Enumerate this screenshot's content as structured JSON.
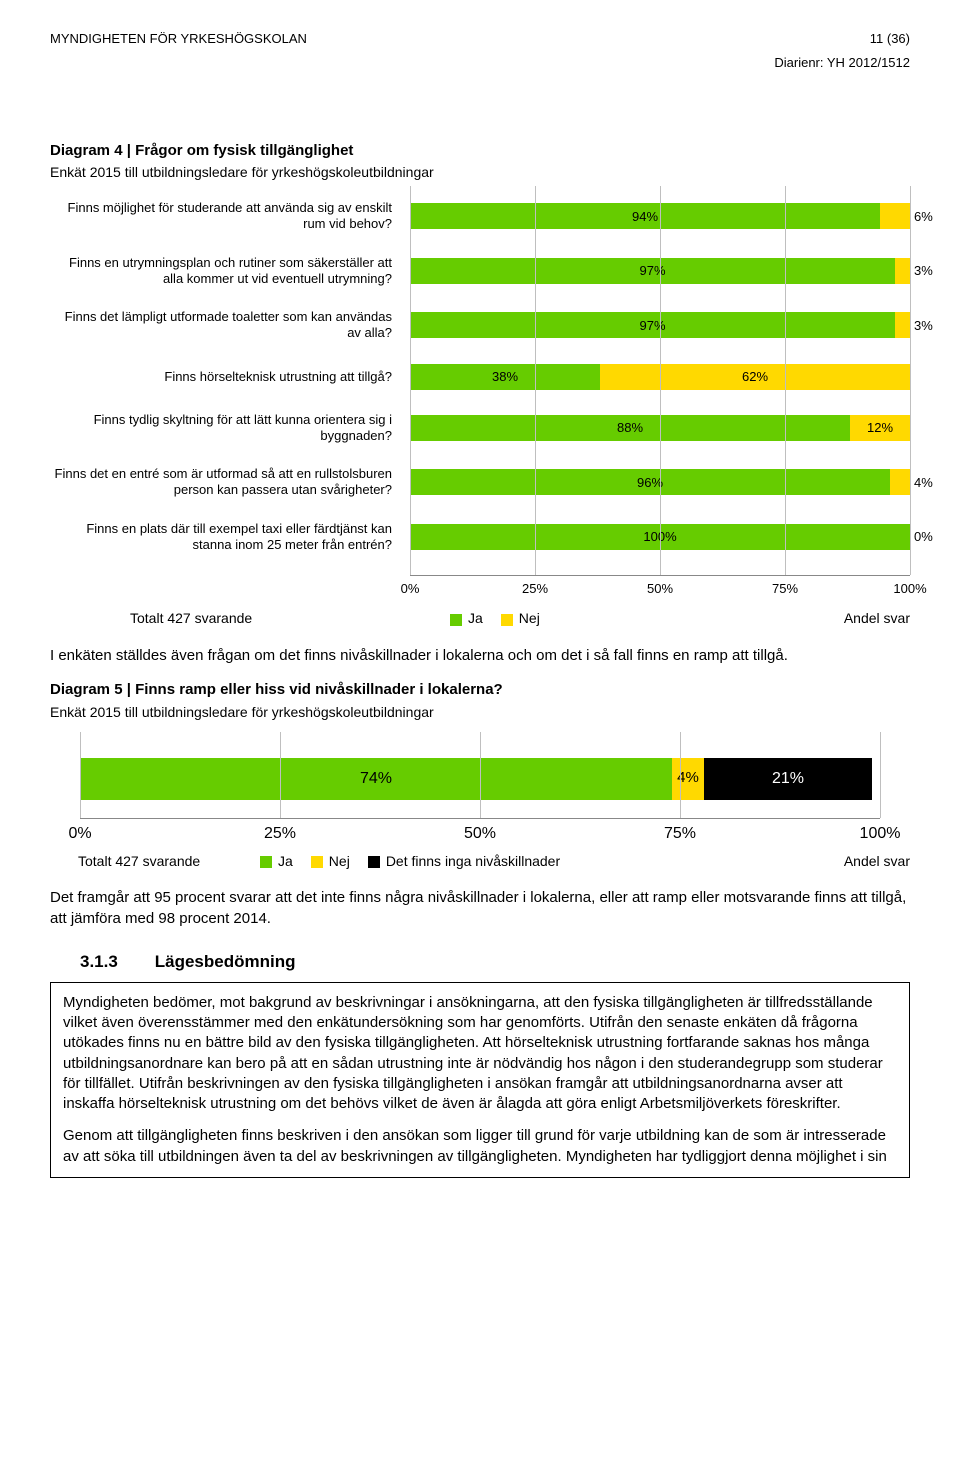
{
  "header": {
    "agency": "MYNDIGHETEN FÖR YRKESHÖGSKOLAN",
    "page_number": "11 (36)",
    "diarienr": "Diarienr: YH 2012/1512"
  },
  "diagram4": {
    "title": "Diagram 4 | Frågor om fysisk tillgänglighet",
    "subtitle": "Enkät 2015 till utbildningsledare för yrkeshögskoleutbildningar",
    "colors": {
      "ja": "#66cc00",
      "nej": "#ffd900",
      "grid": "#bfbfbf",
      "text": "#000000"
    },
    "axis": {
      "ticks": [
        "0%",
        "25%",
        "50%",
        "75%",
        "100%"
      ],
      "positions": [
        0,
        25,
        50,
        75,
        100
      ]
    },
    "rows": [
      {
        "label": "Finns möjlighet för studerande att använda sig av enskilt rum vid behov?",
        "ja": 94,
        "nej": 6,
        "ja_label": "94%",
        "nej_label": "6%"
      },
      {
        "label": "Finns en utrymningsplan och rutiner som säkerställer att alla kommer ut vid eventuell utrymning?",
        "ja": 97,
        "nej": 3,
        "ja_label": "97%",
        "nej_label": "3%"
      },
      {
        "label": "Finns det lämpligt utformade toaletter som kan användas av alla?",
        "ja": 97,
        "nej": 3,
        "ja_label": "97%",
        "nej_label": "3%"
      },
      {
        "label": "Finns hörselteknisk utrustning att tillgå?",
        "ja": 38,
        "nej": 62,
        "ja_label": "38%",
        "nej_label": "62%"
      },
      {
        "label": "Finns tydlig skyltning för att lätt kunna orientera sig i byggnaden?",
        "ja": 88,
        "nej": 12,
        "ja_label": "88%",
        "nej_label": "12%"
      },
      {
        "label": "Finns det en entré som är utformad så att en rullstolsburen person kan passera utan svårigheter?",
        "ja": 96,
        "nej": 4,
        "ja_label": "96%",
        "nej_label": "4%"
      },
      {
        "label": "Finns en plats där till exempel taxi eller färdtjänst kan stanna inom 25 meter från entrén?",
        "ja": 100,
        "nej": 0,
        "ja_label": "100%",
        "nej_label": "0%"
      }
    ],
    "legend": {
      "total": "Totalt 427 svarande",
      "ja": "Ja",
      "nej": "Nej",
      "andel": "Andel svar"
    }
  },
  "paragraph1": "I enkäten ställdes även frågan om det finns nivåskillnader i lokalerna och om det i så fall finns en ramp att tillgå.",
  "diagram5": {
    "title": "Diagram 5 | Finns ramp eller hiss vid nivåskillnader i lokalerna?",
    "subtitle": "Enkät 2015 till utbildningsledare för yrkeshögskoleutbildningar",
    "colors": {
      "ja": "#66cc00",
      "nej": "#ffd900",
      "inga": "#000000",
      "inga_text": "#ffffff",
      "grid": "#bfbfbf"
    },
    "axis": {
      "ticks": [
        "0%",
        "25%",
        "50%",
        "75%",
        "100%"
      ],
      "positions": [
        0,
        25,
        50,
        75,
        100
      ]
    },
    "segments": {
      "ja": 74,
      "nej": 4,
      "inga": 21,
      "ja_label": "74%",
      "nej_label": "4%",
      "inga_label": "21%"
    },
    "legend": {
      "total": "Totalt 427 svarande",
      "ja": "Ja",
      "nej": "Nej",
      "inga": "Det finns inga nivåskillnader",
      "andel": "Andel svar"
    }
  },
  "paragraph2": "Det framgår att 95 procent svarar att det inte finns några nivåskillnader i lokalerna, eller att ramp eller motsvarande finns att tillgå, att jämföra med 98 procent 2014.",
  "section": {
    "number": "3.1.3",
    "title": "Lägesbedömning",
    "para1": "Myndigheten bedömer, mot bakgrund av beskrivningar i ansökningarna, att den fysiska tillgängligheten är tillfredsställande vilket även överensstämmer med den enkätundersökning som har genomförts. Utifrån den senaste enkäten då frågorna utökades finns nu en bättre bild av den fysiska tillgängligheten. Att hörselteknisk utrustning fortfarande saknas hos många utbildningsanordnare kan bero på att en sådan utrustning inte är nödvändig hos någon i den studerandegrupp som studerar för tillfället. Utifrån beskrivningen av den fysiska tillgängligheten i ansökan framgår att utbildningsanordnarna avser att inskaffa hörselteknisk utrustning om det behövs vilket de även är ålagda att göra enligt Arbetsmiljöverkets föreskrifter.",
    "para2": "Genom att tillgängligheten finns beskriven i den ansökan som ligger till grund för varje utbildning kan de som är intresserade av att söka till utbildningen även ta del av beskrivningen av tillgängligheten. Myndigheten har tydliggjort denna möjlighet i sin"
  }
}
